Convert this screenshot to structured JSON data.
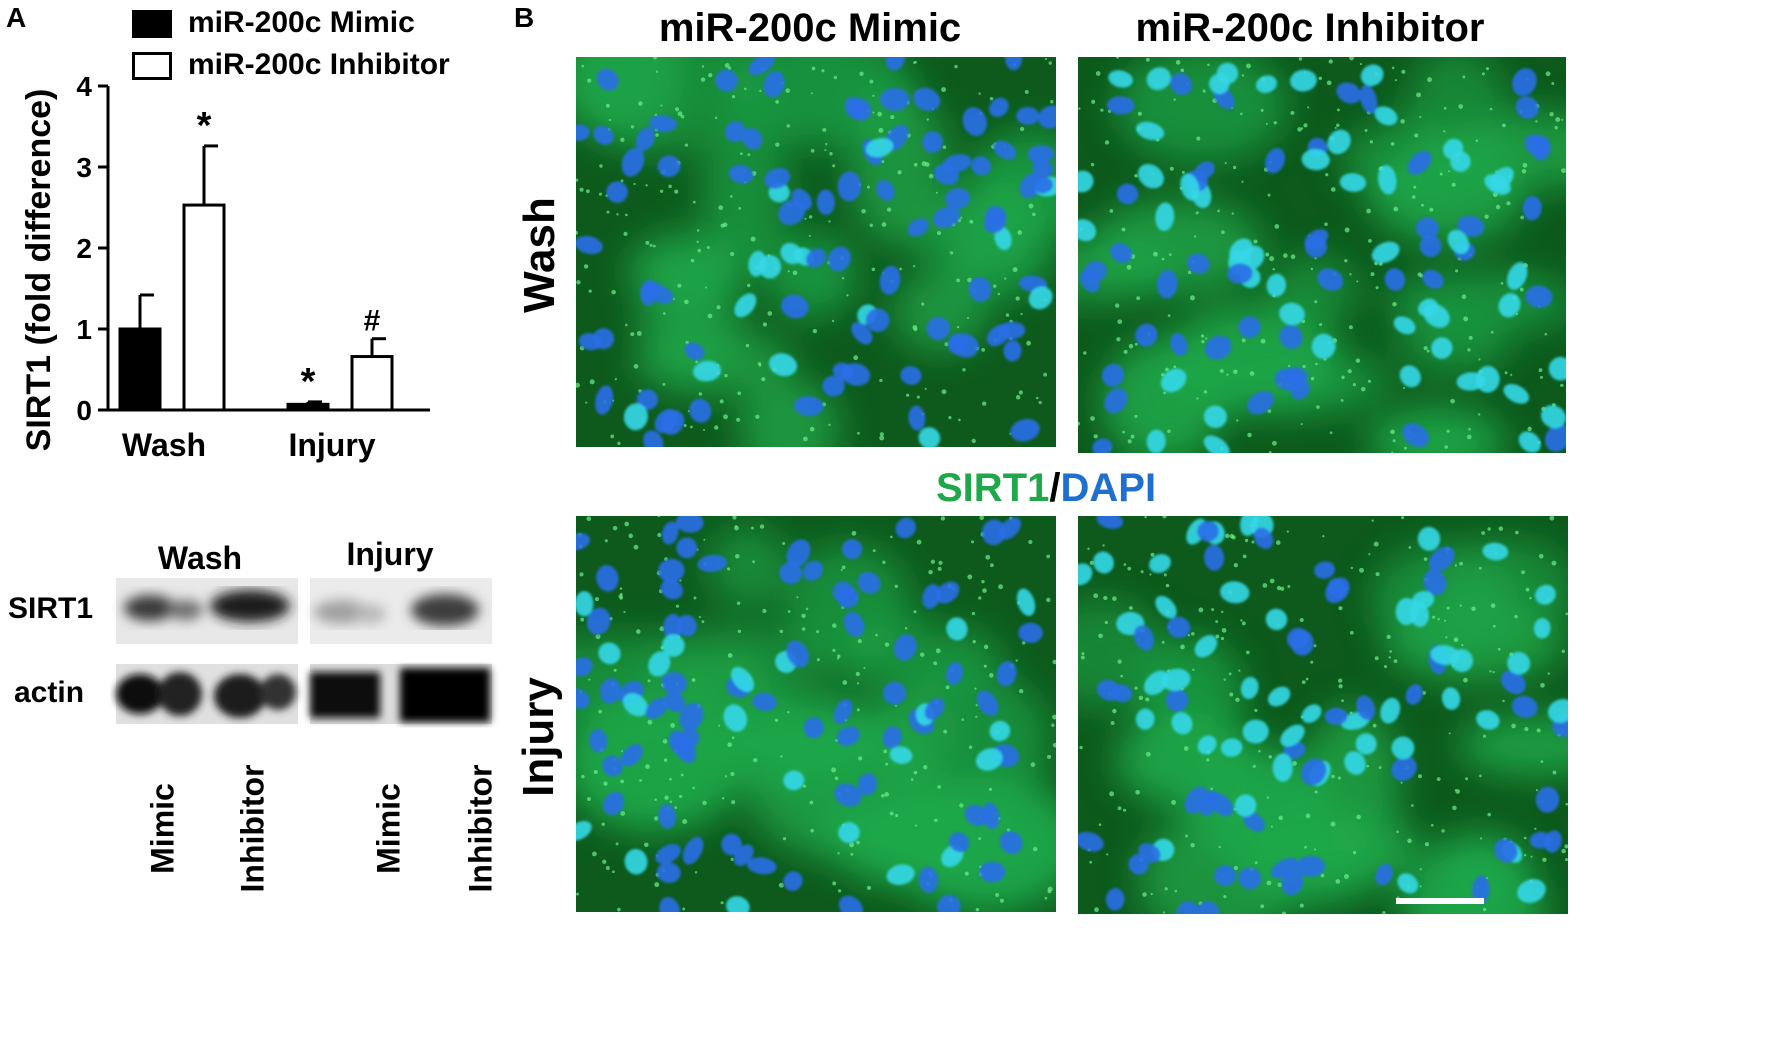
{
  "panel_a": {
    "letter": "A",
    "legend": [
      {
        "label": "miR-200c Mimic",
        "fill": "#000000"
      },
      {
        "label": "miR-200c Inhibitor",
        "fill": "#ffffff"
      }
    ]
  },
  "chart_data": {
    "type": "bar",
    "categories": [
      "Wash",
      "Injury"
    ],
    "series": [
      {
        "name": "miR-200c Mimic",
        "values": [
          1.0,
          0.07
        ],
        "errors": [
          0.42,
          0.03
        ],
        "annotations": [
          "",
          "*"
        ]
      },
      {
        "name": "miR-200c Inhibitor",
        "values": [
          2.53,
          0.66
        ],
        "errors": [
          0.73,
          0.22
        ],
        "annotations": [
          "*",
          "#"
        ]
      }
    ],
    "ylabel": "SIRT1 (fold difference)",
    "ylim": [
      0,
      4
    ],
    "yticks": [
      "0",
      "1",
      "2",
      "3",
      "4"
    ],
    "grid": false,
    "legend_position": "top"
  },
  "blot": {
    "groups": [
      "Wash",
      "Injury"
    ],
    "rows": [
      "SIRT1",
      "actin"
    ],
    "lanes": [
      "Mimic",
      "Inhibitor",
      "Mimic",
      "Inhibitor"
    ]
  },
  "panel_b": {
    "letter": "B",
    "columns": [
      "miR-200c Mimic",
      "miR-200c Inhibitor"
    ],
    "rows": [
      "Wash",
      "Injury"
    ],
    "stain_label": {
      "part1": "SIRT1",
      "sep": "/",
      "part2": "DAPI"
    },
    "colors": {
      "sirt1": "#1fa84a",
      "dapi": "#1f6fd0",
      "nuclei": "#2a6ee8",
      "nuclei_bright": "#35d8e8",
      "background": "#0d5a1c"
    }
  }
}
